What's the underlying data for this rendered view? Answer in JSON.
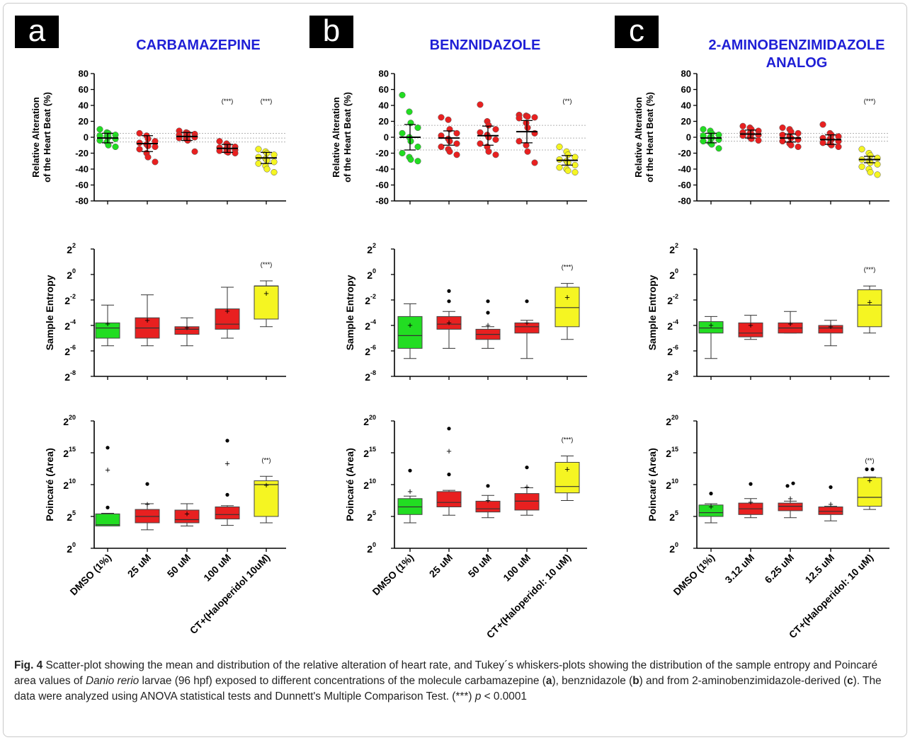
{
  "panels": [
    {
      "label": "a",
      "title": "CARBAMAZEPINE"
    },
    {
      "label": "b",
      "title": "BENZNIDAZOLE"
    },
    {
      "label": "c",
      "title_line1": "2-AMINOBENZIMIDAZOLE",
      "title_line2": "ANALOG"
    }
  ],
  "axis_labels": {
    "heart": [
      "Relative Alteration",
      "of the Heart Beat (%)"
    ],
    "entropy": "Sample  Entropy",
    "poincare": "Poincaré (Area)"
  },
  "heart_ticks": [
    "80",
    "60",
    "40",
    "20",
    "0",
    "-20",
    "-40",
    "-60",
    "-80"
  ],
  "entropy_tick_exponents": [
    "2",
    "0",
    "-2",
    "-4",
    "-6",
    "-8"
  ],
  "poincare_tick_exponents": [
    "20",
    "15",
    "10",
    "5",
    "0"
  ],
  "colors": {
    "control": "#22dd22",
    "treated": "#e82020",
    "positive": "#f5f522",
    "title": "#1f1fd6"
  },
  "chart_data": [
    {
      "panel": "a",
      "type": "scatter",
      "ylabel": "Relative Alteration of the Heart Beat (%)",
      "ylim": [
        -80,
        80
      ],
      "categories": [
        "DMSO (1%)",
        "25 uM",
        "50 uM",
        "100 uM",
        "CT+(Haloperidol 10uM)"
      ],
      "reference_lines": [
        5,
        -1,
        -6
      ],
      "means": [
        -1,
        -8,
        1,
        -14,
        -26
      ],
      "sds": [
        6,
        10,
        5,
        5,
        7
      ],
      "annotations": [
        "",
        "",
        "",
        "(***)",
        "(***)"
      ],
      "points": [
        [
          10,
          6,
          5,
          3,
          2,
          1,
          0,
          -2,
          -4,
          -6,
          -10,
          -12
        ],
        [
          5,
          2,
          -2,
          -5,
          -7,
          -9,
          -11,
          -12,
          -15,
          -20,
          -25,
          -31
        ],
        [
          8,
          6,
          5,
          4,
          3,
          2,
          1,
          0,
          -1,
          -2,
          -4,
          -18
        ],
        [
          -5,
          -8,
          -10,
          -12,
          -13,
          -14,
          -15,
          -16,
          -17,
          -18,
          -19,
          -20
        ],
        [
          -15,
          -18,
          -20,
          -22,
          -25,
          -27,
          -29,
          -31,
          -33,
          -36,
          -40,
          -44
        ]
      ]
    },
    {
      "panel": "b",
      "type": "scatter",
      "ylabel": "Relative Alteration of the Heart Beat (%)",
      "ylim": [
        -80,
        80
      ],
      "categories": [
        "DMSO (1%)",
        "25 uM",
        "50 uM",
        "100 uM",
        "CT+(Haloperidol: 10 uM)"
      ],
      "reference_lines": [
        15,
        -1,
        -16
      ],
      "means": [
        0,
        -1,
        2,
        7,
        -29
      ],
      "sds": [
        16,
        9,
        12,
        14,
        6
      ],
      "annotations": [
        "",
        "",
        "",
        "",
        "(**)"
      ],
      "points": [
        [
          53,
          32,
          18,
          12,
          5,
          0,
          -5,
          -12,
          -20,
          -25,
          -28,
          -30
        ],
        [
          25,
          22,
          10,
          5,
          2,
          -2,
          -5,
          -8,
          -12,
          -15,
          -18,
          -22
        ],
        [
          41,
          20,
          15,
          10,
          6,
          3,
          0,
          -3,
          -8,
          -12,
          -18,
          -22
        ],
        [
          28,
          27,
          26,
          25,
          24,
          18,
          12,
          5,
          -5,
          -10,
          -18,
          -32
        ],
        [
          -12,
          -18,
          -22,
          -25,
          -28,
          -30,
          -32,
          -35,
          -38,
          -40,
          -42,
          -44
        ]
      ]
    },
    {
      "panel": "c",
      "type": "scatter",
      "ylabel": "Relative Alteration of the Heart Beat (%)",
      "ylim": [
        -80,
        80
      ],
      "categories": [
        "DMSO (1%)",
        "3.12 uM",
        "6.25 uM",
        "12.5 uM",
        "CT+(Haloperidol: 10 uM)"
      ],
      "reference_lines": [
        5,
        0,
        -5
      ],
      "means": [
        -1,
        4,
        -1,
        -3,
        -28
      ],
      "sds": [
        6,
        5,
        5,
        6,
        4
      ],
      "annotations": [
        "",
        "",
        "",
        "",
        "(***)"
      ],
      "points": [
        [
          10,
          8,
          5,
          3,
          2,
          0,
          -1,
          -3,
          -5,
          -7,
          -9,
          -14
        ],
        [
          14,
          12,
          10,
          8,
          6,
          5,
          4,
          3,
          2,
          0,
          -2,
          -4
        ],
        [
          12,
          10,
          7,
          5,
          3,
          1,
          -1,
          -3,
          -5,
          -8,
          -10,
          -12
        ],
        [
          16,
          5,
          3,
          1,
          -1,
          -2,
          -3,
          -5,
          -7,
          -8,
          -10,
          -12
        ],
        [
          -15,
          -20,
          -23,
          -26,
          -28,
          -30,
          -32,
          -34,
          -37,
          -40,
          -44,
          -47
        ]
      ]
    },
    {
      "panel": "a",
      "type": "box",
      "ylabel": "Sample Entropy",
      "scale": "log2",
      "ylim_log2": [
        -8,
        2
      ],
      "annotations": [
        "",
        "",
        "",
        "",
        "(***)"
      ],
      "boxes": [
        {
          "min": -5.6,
          "q1": -5.0,
          "median": -4.2,
          "q3": -3.8,
          "max": -2.4,
          "mean": -3.9,
          "outliers": []
        },
        {
          "min": -5.6,
          "q1": -5.0,
          "median": -4.2,
          "q3": -3.4,
          "max": -1.6,
          "mean": -3.6,
          "outliers": []
        },
        {
          "min": -5.6,
          "q1": -4.7,
          "median": -4.3,
          "q3": -4.1,
          "max": -3.4,
          "mean": -4.2,
          "outliers": []
        },
        {
          "min": -5.0,
          "q1": -4.3,
          "median": -3.9,
          "q3": -2.7,
          "max": -1.0,
          "mean": -2.9,
          "outliers": []
        },
        {
          "min": -4.1,
          "q1": -3.5,
          "median": -0.9,
          "q3": -0.9,
          "max": -0.5,
          "mean": -1.5,
          "outliers": []
        }
      ]
    },
    {
      "panel": "b",
      "type": "box",
      "ylabel": "Sample Entropy",
      "scale": "log2",
      "ylim_log2": [
        -8,
        2
      ],
      "annotations": [
        "",
        "",
        "",
        "",
        "(***)"
      ],
      "boxes": [
        {
          "min": -6.6,
          "q1": -5.8,
          "median": -4.8,
          "q3": -3.3,
          "max": -2.3,
          "mean": -4.0,
          "outliers": []
        },
        {
          "min": -5.8,
          "q1": -4.3,
          "median": -3.9,
          "q3": -3.3,
          "max": -2.9,
          "mean": -3.8,
          "outliers": [
            -1.3,
            -2.1
          ]
        },
        {
          "min": -5.8,
          "q1": -5.1,
          "median": -4.7,
          "q3": -4.3,
          "max": -4.1,
          "mean": -4.0,
          "outliers": [
            -2.1,
            -3.0
          ]
        },
        {
          "min": -6.6,
          "q1": -4.6,
          "median": -4.1,
          "q3": -3.8,
          "max": -3.6,
          "mean": -3.8,
          "outliers": [
            -2.1
          ]
        },
        {
          "min": -5.1,
          "q1": -4.1,
          "median": -2.6,
          "q3": -1.0,
          "max": -0.7,
          "mean": -1.8,
          "outliers": []
        }
      ]
    },
    {
      "panel": "c",
      "type": "box",
      "ylabel": "Sample Entropy",
      "scale": "log2",
      "ylim_log2": [
        -8,
        2
      ],
      "annotations": [
        "",
        "",
        "",
        "",
        "(***)"
      ],
      "boxes": [
        {
          "min": -6.6,
          "q1": -4.6,
          "median": -4.2,
          "q3": -3.7,
          "max": -3.3,
          "mean": -4.0,
          "outliers": []
        },
        {
          "min": -5.1,
          "q1": -4.9,
          "median": -4.6,
          "q3": -3.8,
          "max": -3.2,
          "mean": -4.0,
          "outliers": []
        },
        {
          "min": -4.6,
          "q1": -4.6,
          "median": -4.2,
          "q3": -3.8,
          "max": -2.9,
          "mean": -3.9,
          "outliers": []
        },
        {
          "min": -5.6,
          "q1": -4.6,
          "median": -4.2,
          "q3": -4.0,
          "max": -3.6,
          "mean": -4.1,
          "outliers": []
        },
        {
          "min": -4.6,
          "q1": -4.1,
          "median": -2.4,
          "q3": -1.2,
          "max": -0.9,
          "mean": -2.2,
          "outliers": []
        }
      ]
    },
    {
      "panel": "a",
      "type": "box",
      "ylabel": "Poincaré (Area)",
      "scale": "log2",
      "ylim_log2": [
        0,
        20
      ],
      "annotations": [
        "",
        "",
        "",
        "",
        "(**)"
      ],
      "boxes": [
        {
          "min": 3.5,
          "q1": 3.5,
          "median": 3.7,
          "q3": 5.4,
          "max": 5.5,
          "mean": 12.3,
          "outliers": [
            15.8,
            6.4
          ]
        },
        {
          "min": 2.9,
          "q1": 4.0,
          "median": 5.0,
          "q3": 6.1,
          "max": 7.0,
          "mean": 6.9,
          "outliers": [
            10.1
          ]
        },
        {
          "min": 3.5,
          "q1": 4.0,
          "median": 4.5,
          "q3": 6.0,
          "max": 7.0,
          "mean": 5.4,
          "outliers": []
        },
        {
          "min": 3.6,
          "q1": 4.6,
          "median": 5.3,
          "q3": 6.5,
          "max": 6.7,
          "mean": 13.3,
          "outliers": [
            16.9,
            8.4
          ]
        },
        {
          "min": 4.0,
          "q1": 5.0,
          "median": 10.0,
          "q3": 10.6,
          "max": 11.3,
          "mean": 9.9,
          "outliers": []
        }
      ]
    },
    {
      "panel": "b",
      "type": "box",
      "ylabel": "Poincaré (Area)",
      "scale": "log2",
      "ylim_log2": [
        0,
        20
      ],
      "annotations": [
        "",
        "",
        "",
        "",
        "(***)"
      ],
      "boxes": [
        {
          "min": 4.0,
          "q1": 5.3,
          "median": 6.5,
          "q3": 7.8,
          "max": 8.2,
          "mean": 8.9,
          "outliers": [
            12.2
          ]
        },
        {
          "min": 5.2,
          "q1": 6.5,
          "median": 7.2,
          "q3": 8.9,
          "max": 9.1,
          "mean": 15.2,
          "outliers": [
            18.8,
            11.6
          ]
        },
        {
          "min": 4.8,
          "q1": 5.7,
          "median": 6.2,
          "q3": 7.4,
          "max": 8.3,
          "mean": 7.5,
          "outliers": [
            9.8
          ]
        },
        {
          "min": 5.2,
          "q1": 6.0,
          "median": 7.4,
          "q3": 8.6,
          "max": 9.5,
          "mean": 9.6,
          "outliers": [
            12.7
          ]
        },
        {
          "min": 7.5,
          "q1": 8.7,
          "median": 9.7,
          "q3": 13.5,
          "max": 14.5,
          "mean": 12.4,
          "outliers": []
        }
      ]
    },
    {
      "panel": "c",
      "type": "box",
      "ylabel": "Poincaré (Area)",
      "scale": "log2",
      "ylim_log2": [
        0,
        20
      ],
      "annotations": [
        "",
        "",
        "",
        "",
        "(**)"
      ],
      "boxes": [
        {
          "min": 4.0,
          "q1": 5.0,
          "median": 5.6,
          "q3": 6.8,
          "max": 7.0,
          "mean": 6.5,
          "outliers": [
            8.6
          ]
        },
        {
          "min": 4.8,
          "q1": 5.3,
          "median": 6.2,
          "q3": 7.1,
          "max": 7.8,
          "mean": 7.2,
          "outliers": [
            10.1
          ]
        },
        {
          "min": 4.8,
          "q1": 5.9,
          "median": 6.6,
          "q3": 7.1,
          "max": 7.4,
          "mean": 7.8,
          "outliers": [
            9.8,
            10.2
          ]
        },
        {
          "min": 4.3,
          "q1": 5.3,
          "median": 5.8,
          "q3": 6.5,
          "max": 6.6,
          "mean": 6.9,
          "outliers": [
            9.6
          ]
        },
        {
          "min": 6.1,
          "q1": 6.6,
          "median": 8.0,
          "q3": 11.1,
          "max": 11.2,
          "mean": 10.6,
          "outliers": [
            12.4,
            12.4
          ]
        }
      ]
    }
  ],
  "caption": {
    "fig": "Fig. 4",
    "part1": " Scatter-plot showing the mean and distribution of the relative alteration of heart rate, and Tukey´s whiskers-plots showing the distribution of the sample entropy and Poincaré area values of ",
    "species": "Danio rerio",
    "part2": " larvae (96 hpf) exposed to different concentrations of the molecule carbamazepine (",
    "a": "a",
    "part3": "), benznidazole (",
    "b": "b",
    "part4": ") and from 2-aminobenzimidazole-derived (",
    "c": "c",
    "part5": "). The data were analyzed using ANOVA statistical tests and Dunnett's Multiple Comparison Test. (***) ",
    "p": "p",
    "part6": " < 0.0001"
  }
}
